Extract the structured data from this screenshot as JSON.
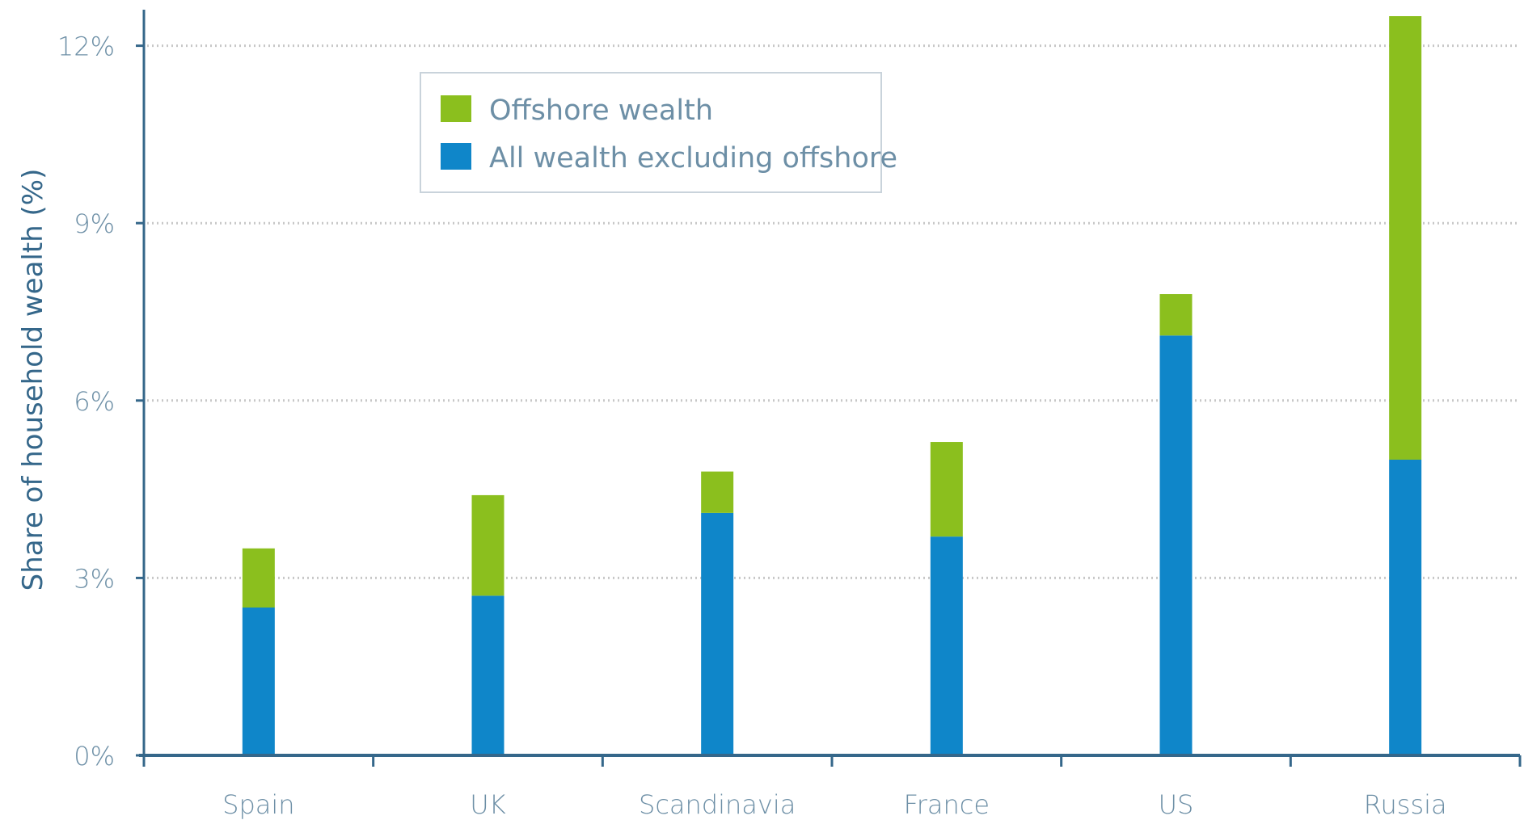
{
  "chart_data": {
    "type": "bar",
    "stacked": true,
    "categories": [
      "Spain",
      "UK",
      "Scandinavia",
      "France",
      "US",
      "Russia"
    ],
    "series": [
      {
        "name": "All wealth excluding offshore",
        "color": "#0f86c9",
        "values": [
          2.5,
          2.7,
          4.1,
          3.7,
          7.1,
          5.0
        ]
      },
      {
        "name": "Offshore wealth",
        "color": "#8bbf1e",
        "values": [
          1.0,
          1.7,
          0.7,
          1.6,
          0.7,
          7.5
        ]
      }
    ],
    "ylabel": "Share of household wealth (%)",
    "xlabel": "",
    "ylim": [
      0,
      12.5
    ],
    "yticks": [
      0,
      3,
      6,
      9,
      12
    ],
    "ytick_labels": [
      "0%",
      "3%",
      "6%",
      "9%",
      "12%"
    ],
    "grid": true,
    "legend_position": "top-left",
    "legend": [
      "Offshore wealth",
      "All wealth excluding offshore"
    ]
  },
  "colors": {
    "axis": "#35678a",
    "grid": "#c7c7c7",
    "tick_text": "#6d8fa6",
    "legend_border": "#c9d3db"
  }
}
